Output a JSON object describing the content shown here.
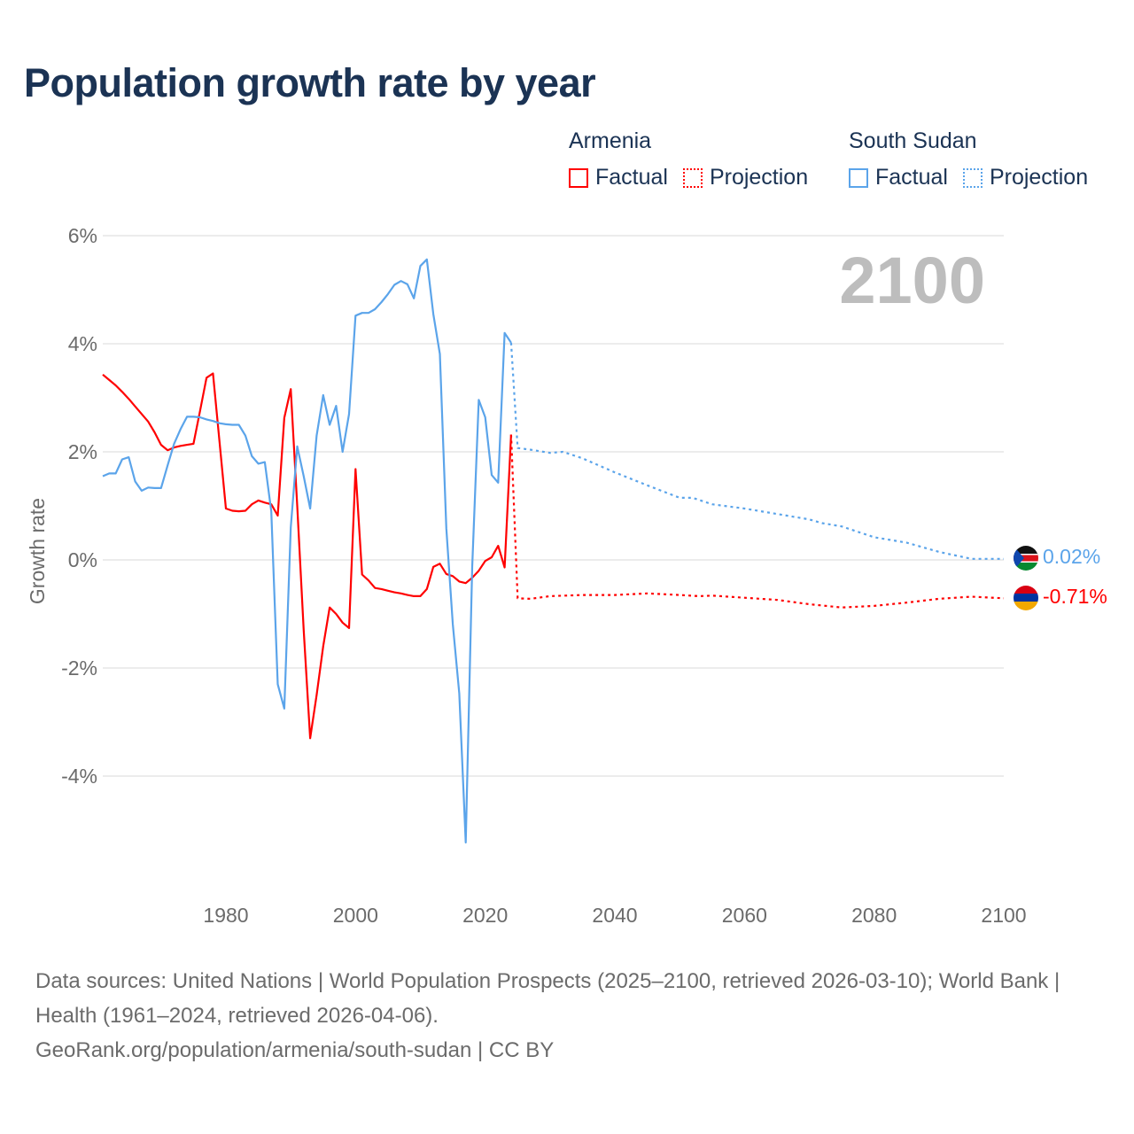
{
  "title": "Population growth rate by year",
  "legend": {
    "groups": [
      {
        "name": "Armenia",
        "factual_label": "Factual",
        "projection_label": "Projection",
        "color": "#ff0000"
      },
      {
        "name": "South Sudan",
        "factual_label": "Factual",
        "projection_label": "Projection",
        "color": "#5ba4ea"
      }
    ]
  },
  "year_watermark": "2100",
  "end_labels": {
    "south_sudan": "0.02%",
    "armenia": "-0.71%"
  },
  "footer": {
    "sources": "Data sources: United Nations | World Population Prospects (2025–2100, retrieved 2026-03-10); World Bank | Health (1961–2024, retrieved 2026-04-06).",
    "credit": "GeoRank.org/population/armenia/south-sudan | CC BY"
  },
  "chart_data": {
    "type": "line",
    "title": "Population growth rate by year",
    "xlabel": "",
    "ylabel": "Growth rate",
    "xlim": [
      1961,
      2100
    ],
    "ylim": [
      -6,
      6.5
    ],
    "x_ticks": [
      1980,
      2000,
      2020,
      2040,
      2060,
      2080,
      2100
    ],
    "x_tick_labels": [
      "1980",
      "2000",
      "2020",
      "2040",
      "2060",
      "2080",
      "2100"
    ],
    "y_ticks": [
      6,
      4,
      2,
      0,
      -2,
      -4
    ],
    "y_tick_labels": [
      "6%",
      "4%",
      "2%",
      "0%",
      "-2%",
      "-4%"
    ],
    "grid": true,
    "legend_position": "top-right",
    "series": [
      {
        "name": "Armenia Factual",
        "color": "#ff0000",
        "style": "solid",
        "x": [
          1961,
          1962,
          1963,
          1964,
          1965,
          1966,
          1967,
          1968,
          1969,
          1970,
          1971,
          1972,
          1973,
          1974,
          1975,
          1976,
          1977,
          1978,
          1979,
          1980,
          1981,
          1982,
          1983,
          1984,
          1985,
          1986,
          1987,
          1988,
          1989,
          1990,
          1991,
          1992,
          1993,
          1994,
          1995,
          1996,
          1997,
          1998,
          1999,
          2000,
          2001,
          2002,
          2003,
          2004,
          2005,
          2006,
          2007,
          2008,
          2009,
          2010,
          2011,
          2012,
          2013,
          2014,
          2015,
          2016,
          2017,
          2018,
          2019,
          2020,
          2021,
          2022,
          2023,
          2024
        ],
        "y": [
          3.43,
          3.33,
          3.23,
          3.11,
          2.98,
          2.84,
          2.7,
          2.56,
          2.36,
          2.13,
          2.03,
          2.08,
          2.11,
          2.13,
          2.15,
          2.75,
          3.37,
          3.45,
          2.2,
          0.95,
          0.91,
          0.9,
          0.91,
          1.03,
          1.1,
          1.06,
          1.03,
          0.82,
          2.63,
          3.16,
          1.0,
          -1.3,
          -3.3,
          -2.5,
          -1.6,
          -0.88,
          -1.0,
          -1.16,
          -1.26,
          1.68,
          -0.27,
          -0.38,
          -0.52,
          -0.54,
          -0.57,
          -0.6,
          -0.62,
          -0.65,
          -0.67,
          -0.67,
          -0.54,
          -0.13,
          -0.07,
          -0.26,
          -0.3,
          -0.4,
          -0.43,
          -0.33,
          -0.2,
          -0.02,
          0.05,
          0.26,
          -0.14,
          2.32
        ]
      },
      {
        "name": "Armenia Projection",
        "color": "#ff0000",
        "style": "dotted",
        "x": [
          2024,
          2025,
          2027,
          2030,
          2035,
          2040,
          2045,
          2050,
          2053,
          2055,
          2060,
          2065,
          2070,
          2075,
          2080,
          2085,
          2090,
          2095,
          2100
        ],
        "y": [
          2.32,
          -0.71,
          -0.72,
          -0.67,
          -0.65,
          -0.65,
          -0.62,
          -0.65,
          -0.67,
          -0.66,
          -0.7,
          -0.74,
          -0.82,
          -0.88,
          -0.85,
          -0.79,
          -0.72,
          -0.68,
          -0.71
        ]
      },
      {
        "name": "South Sudan Factual",
        "color": "#5ba4ea",
        "style": "solid",
        "x": [
          1961,
          1962,
          1963,
          1964,
          1965,
          1966,
          1967,
          1968,
          1969,
          1970,
          1971,
          1972,
          1973,
          1974,
          1975,
          1976,
          1977,
          1978,
          1979,
          1980,
          1981,
          1982,
          1983,
          1984,
          1985,
          1986,
          1987,
          1988,
          1989,
          1990,
          1991,
          1992,
          1993,
          1994,
          1995,
          1996,
          1997,
          1998,
          1999,
          2000,
          2001,
          2002,
          2003,
          2004,
          2005,
          2006,
          2007,
          2008,
          2009,
          2010,
          2011,
          2012,
          2013,
          2014,
          2015,
          2016,
          2017,
          2018,
          2019,
          2020,
          2021,
          2022,
          2023,
          2024
        ],
        "y": [
          1.55,
          1.6,
          1.6,
          1.86,
          1.9,
          1.45,
          1.28,
          1.34,
          1.33,
          1.33,
          1.75,
          2.15,
          2.42,
          2.65,
          2.65,
          2.64,
          2.6,
          2.57,
          2.53,
          2.51,
          2.5,
          2.5,
          2.3,
          1.92,
          1.78,
          1.81,
          0.9,
          -2.3,
          -2.75,
          0.6,
          2.1,
          1.55,
          0.95,
          2.3,
          3.05,
          2.5,
          2.85,
          2.0,
          2.7,
          4.52,
          4.57,
          4.57,
          4.64,
          4.77,
          4.92,
          5.09,
          5.16,
          5.1,
          4.84,
          5.44,
          5.56,
          4.55,
          3.81,
          0.58,
          -1.19,
          -2.47,
          -5.23,
          -0.13,
          2.96,
          2.64,
          1.57,
          1.43,
          4.2,
          4.02
        ]
      },
      {
        "name": "South Sudan Projection",
        "color": "#5ba4ea",
        "style": "dotted",
        "x": [
          2024,
          2025,
          2027,
          2030,
          2032,
          2035,
          2040,
          2045,
          2050,
          2052,
          2055,
          2060,
          2065,
          2070,
          2072,
          2075,
          2080,
          2085,
          2090,
          2095,
          2100
        ],
        "y": [
          4.02,
          2.07,
          2.04,
          1.98,
          2.0,
          1.88,
          1.62,
          1.38,
          1.15,
          1.15,
          1.03,
          0.95,
          0.85,
          0.75,
          0.68,
          0.62,
          0.42,
          0.32,
          0.15,
          0.02,
          0.02
        ]
      }
    ]
  }
}
